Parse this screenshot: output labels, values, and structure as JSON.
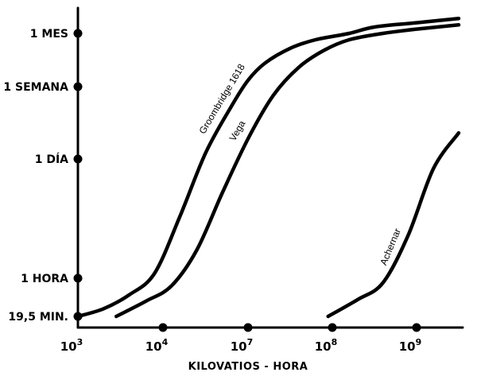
{
  "chart_data": {
    "type": "line",
    "xlabel": "KILOVATIOS - HORA",
    "ylabel": "",
    "x_ticks": [
      {
        "base": "10",
        "exp": "3"
      },
      {
        "base": "10",
        "exp": "4"
      },
      {
        "base": "10",
        "exp": "7"
      },
      {
        "base": "10",
        "exp": "8"
      },
      {
        "base": "10",
        "exp": "9"
      }
    ],
    "y_ticks": [
      "19,5 MIN.",
      "1 HORA",
      "1 DÍA",
      "1 SEMANA",
      "1 MES"
    ],
    "grid": false,
    "legend": "none",
    "series": [
      {
        "name": "Groombridge 1618",
        "points": [
          [
            0.0,
            0.0
          ],
          [
            0.3,
            0.05
          ],
          [
            0.6,
            0.14
          ],
          [
            0.9,
            0.26
          ],
          [
            1.2,
            0.38
          ],
          [
            1.5,
            0.52
          ],
          [
            1.8,
            0.68
          ],
          [
            2.0,
            0.78
          ],
          [
            2.2,
            0.86
          ],
          [
            2.5,
            0.93
          ],
          [
            2.8,
            0.97
          ],
          [
            3.2,
            1.0
          ],
          [
            3.5,
            1.03
          ],
          [
            4.0,
            1.05
          ],
          [
            4.5,
            1.07
          ]
        ]
      },
      {
        "name": "Vega",
        "points": [
          [
            0.45,
            0.0
          ],
          [
            0.8,
            0.1
          ],
          [
            1.1,
            0.2
          ],
          [
            1.4,
            0.31
          ],
          [
            1.7,
            0.43
          ],
          [
            2.0,
            0.57
          ],
          [
            2.3,
            0.72
          ],
          [
            2.6,
            0.84
          ],
          [
            2.9,
            0.92
          ],
          [
            3.2,
            0.97
          ],
          [
            3.6,
            1.0
          ],
          [
            4.0,
            1.02
          ],
          [
            4.5,
            1.04
          ]
        ]
      },
      {
        "name": "Achernar",
        "points": [
          [
            2.95,
            0.0
          ],
          [
            3.3,
            0.11
          ],
          [
            3.6,
            0.22
          ],
          [
            3.9,
            0.34
          ],
          [
            4.2,
            0.48
          ],
          [
            4.5,
            0.59
          ]
        ]
      }
    ]
  }
}
